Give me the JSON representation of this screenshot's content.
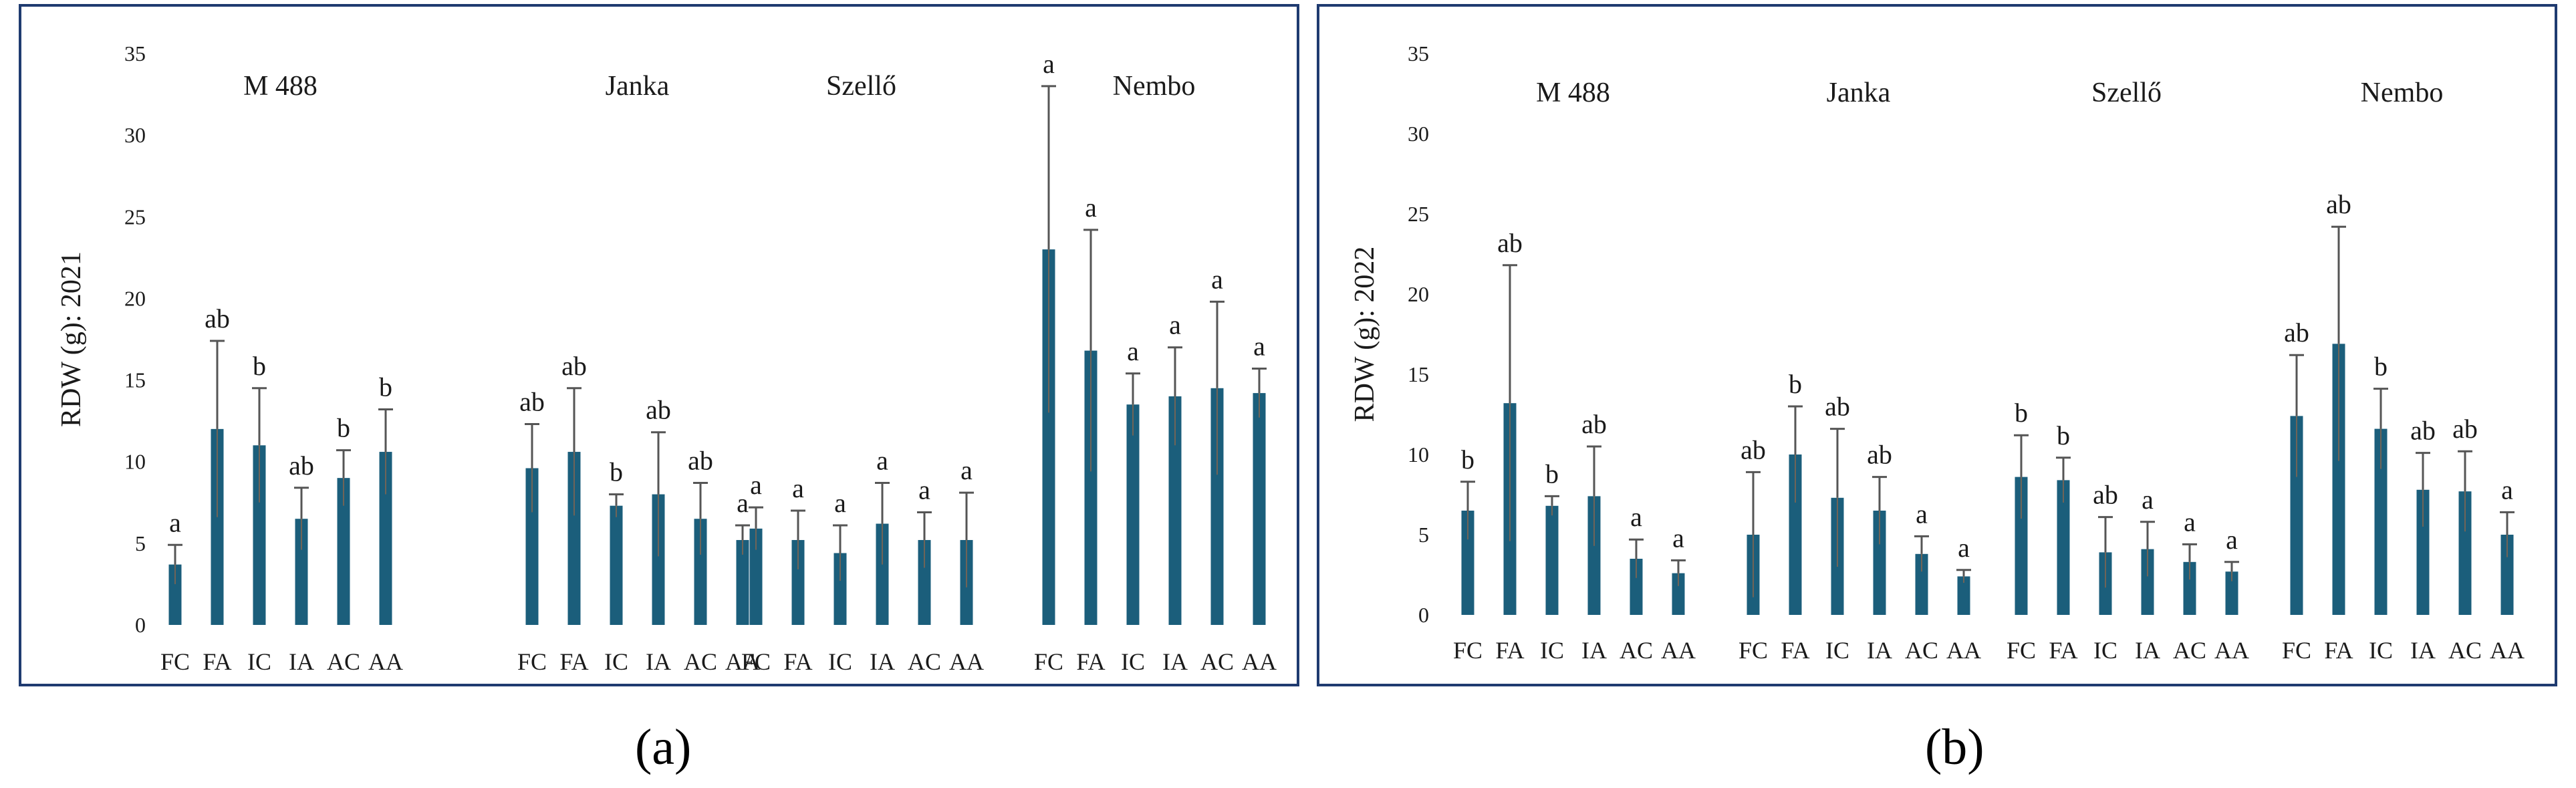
{
  "chart_data": [
    {
      "type": "bar",
      "panel": "a",
      "ylabel": "RDW (g): 2021",
      "ylim": [
        0,
        35
      ],
      "yticks": [
        0,
        5,
        10,
        15,
        20,
        25,
        30,
        35
      ],
      "grid": false,
      "categories": [
        "FC",
        "FA",
        "IC",
        "IA",
        "AC",
        "AA"
      ],
      "color": "#1b5e7b",
      "groups": [
        {
          "name": "M 488",
          "values": [
            3.7,
            12.0,
            11.0,
            6.5,
            9.0,
            10.6
          ],
          "errors": [
            1.2,
            5.4,
            3.5,
            1.9,
            1.7,
            2.6
          ],
          "letters": [
            "a",
            "ab",
            "b",
            "ab",
            "b",
            "b"
          ]
        },
        {
          "name": "Janka",
          "values": [
            9.6,
            10.6,
            7.3,
            8.0,
            6.5,
            5.2
          ],
          "errors": [
            2.7,
            3.9,
            0.7,
            3.8,
            2.2,
            0.9
          ],
          "letters": [
            "ab",
            "ab",
            "b",
            "ab",
            "ab",
            "a"
          ]
        },
        {
          "name": "Szellő",
          "values": [
            5.9,
            5.2,
            4.4,
            6.2,
            5.2,
            5.2
          ],
          "errors": [
            1.3,
            1.8,
            1.7,
            2.5,
            1.7,
            2.9
          ],
          "letters": [
            "a",
            "a",
            "a",
            "a",
            "a",
            "a"
          ]
        },
        {
          "name": "Nembo",
          "values": [
            23.0,
            16.8,
            13.5,
            14.0,
            14.5,
            14.2
          ],
          "errors": [
            10.0,
            7.4,
            1.9,
            3.0,
            5.3,
            1.5
          ],
          "letters": [
            "a",
            "a",
            "a",
            "a",
            "a",
            "a"
          ]
        }
      ]
    },
    {
      "type": "bar",
      "panel": "b",
      "ylabel": "RDW (g): 2022",
      "ylim": [
        0,
        35
      ],
      "yticks": [
        0,
        5,
        10,
        15,
        20,
        25,
        30,
        35
      ],
      "grid": false,
      "categories": [
        "FC",
        "FA",
        "IC",
        "IA",
        "AC",
        "AA"
      ],
      "color": "#1b5e7b",
      "groups": [
        {
          "name": "M 488",
          "values": [
            6.5,
            13.2,
            6.8,
            7.4,
            3.5,
            2.6
          ],
          "errors": [
            1.8,
            8.6,
            0.6,
            3.1,
            1.2,
            0.8
          ],
          "letters": [
            "b",
            "ab",
            "b",
            "ab",
            "a",
            "a"
          ]
        },
        {
          "name": "Janka",
          "values": [
            5.0,
            10.0,
            7.3,
            6.5,
            3.8,
            2.4
          ],
          "errors": [
            3.9,
            3.0,
            4.3,
            2.1,
            1.1,
            0.4
          ],
          "letters": [
            "ab",
            "b",
            "ab",
            "ab",
            "a",
            "a"
          ]
        },
        {
          "name": "Szellő",
          "values": [
            8.6,
            8.4,
            3.9,
            4.1,
            3.3,
            2.7
          ],
          "errors": [
            2.6,
            1.4,
            2.2,
            1.7,
            1.1,
            0.6
          ],
          "letters": [
            "b",
            "b",
            "ab",
            "a",
            "a",
            "a"
          ]
        },
        {
          "name": "Nembo",
          "values": [
            12.4,
            16.9,
            11.6,
            7.8,
            7.7,
            5.0
          ],
          "errors": [
            3.8,
            7.3,
            2.5,
            2.3,
            2.5,
            1.4
          ],
          "letters": [
            "ab",
            "ab",
            "b",
            "ab",
            "ab",
            "a"
          ]
        }
      ]
    }
  ],
  "panel_labels": {
    "a": "(a)",
    "b": "(b)"
  }
}
